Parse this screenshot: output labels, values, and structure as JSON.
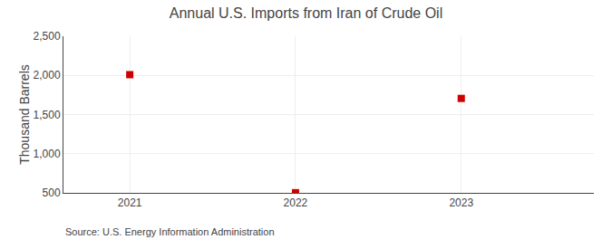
{
  "chart_data": {
    "type": "scatter",
    "title": "Annual U.S. Imports from Iran of Crude Oil",
    "ylabel": "Thousand Barrels",
    "annotations": [
      "Source: U.S. Energy Information Administration"
    ],
    "x": [
      2021,
      2022,
      2023
    ],
    "values": [
      2009,
      502,
      1706
    ],
    "color": "#cc0000",
    "marker": "square",
    "xlim": [
      2020.6,
      2023.8
    ],
    "xticks": [
      2021,
      2022,
      2023
    ],
    "ylim": [
      500,
      2500
    ],
    "yticks": [
      500,
      {
        "value": 1000,
        "label": "1,000"
      },
      {
        "value": 1500,
        "label": "1,500"
      },
      {
        "value": 2000,
        "label": "2,000"
      },
      {
        "value": 2500,
        "label": "2,500"
      }
    ],
    "grid": true
  }
}
